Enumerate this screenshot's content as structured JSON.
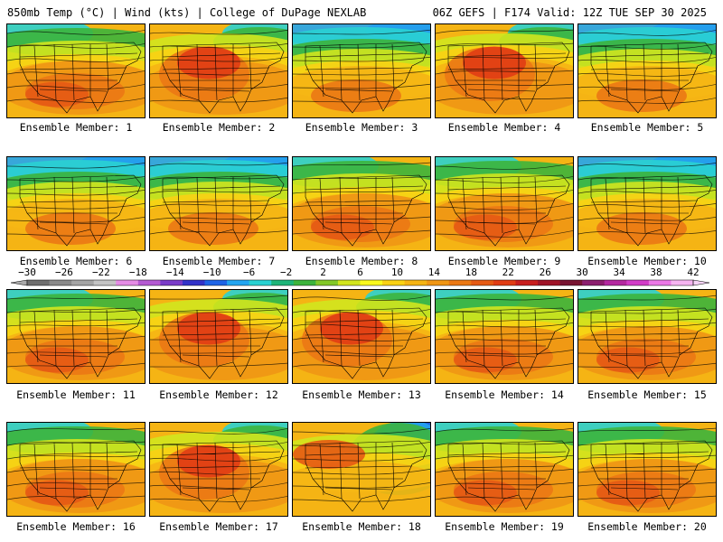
{
  "header": {
    "left": "850mb Temp (°C) | Wind (kts) | College of DuPage NEXLAB",
    "right": "06Z GEFS | F174 Valid: 12Z TUE SEP 30 2025"
  },
  "colorbar": {
    "labels": [
      "−30",
      "−26",
      "−22",
      "−18",
      "−14",
      "−10",
      "−6",
      "−2",
      "2",
      "6",
      "10",
      "14",
      "18",
      "22",
      "26",
      "30",
      "34",
      "38",
      "42"
    ],
    "colors": [
      "#6e6e6e",
      "#8a8a8a",
      "#a5a5a5",
      "#c4c4c4",
      "#e58ce5",
      "#b45ad2",
      "#7a3cc8",
      "#3232c8",
      "#1e64e6",
      "#23a5f0",
      "#2ad2d2",
      "#1eb478",
      "#3cb43c",
      "#82c828",
      "#d2e61e",
      "#fafa1e",
      "#fad214",
      "#f5b414",
      "#f09614",
      "#eb7814",
      "#e65a14",
      "#e13c14",
      "#c81e1e",
      "#a01428",
      "#781432",
      "#8c1e6e",
      "#b428a0",
      "#d23cc8",
      "#eb78e6",
      "#f5b4f0"
    ],
    "tail_colors": [
      "#aaaaaa",
      "#f5d2f5"
    ]
  },
  "panels": [
    {
      "caption": "Ensemble Member: 1",
      "theme": "warm"
    },
    {
      "caption": "Ensemble Member: 2",
      "theme": "hot-north"
    },
    {
      "caption": "Ensemble Member: 3",
      "theme": "cool-north"
    },
    {
      "caption": "Ensemble Member: 4",
      "theme": "hot-north"
    },
    {
      "caption": "Ensemble Member: 5",
      "theme": "cool-north"
    },
    {
      "caption": "Ensemble Member: 6",
      "theme": "cool-north"
    },
    {
      "caption": "Ensemble Member: 7",
      "theme": "cool-north"
    },
    {
      "caption": "Ensemble Member: 8",
      "theme": "warm"
    },
    {
      "caption": "Ensemble Member: 9",
      "theme": "warm"
    },
    {
      "caption": "Ensemble Member: 10",
      "theme": "cool-north"
    },
    {
      "caption": "Ensemble Member: 11",
      "theme": "warm"
    },
    {
      "caption": "Ensemble Member: 12",
      "theme": "hot-north"
    },
    {
      "caption": "Ensemble Member: 13",
      "theme": "hot-north"
    },
    {
      "caption": "Ensemble Member: 14",
      "theme": "warm"
    },
    {
      "caption": "Ensemble Member: 15",
      "theme": "warm"
    },
    {
      "caption": "Ensemble Member: 16",
      "theme": "warm"
    },
    {
      "caption": "Ensemble Member: 17",
      "theme": "hot-north"
    },
    {
      "caption": "Ensemble Member: 18",
      "theme": "cold-east"
    },
    {
      "caption": "Ensemble Member: 19",
      "theme": "warm"
    },
    {
      "caption": "Ensemble Member: 20",
      "theme": "warm"
    }
  ]
}
